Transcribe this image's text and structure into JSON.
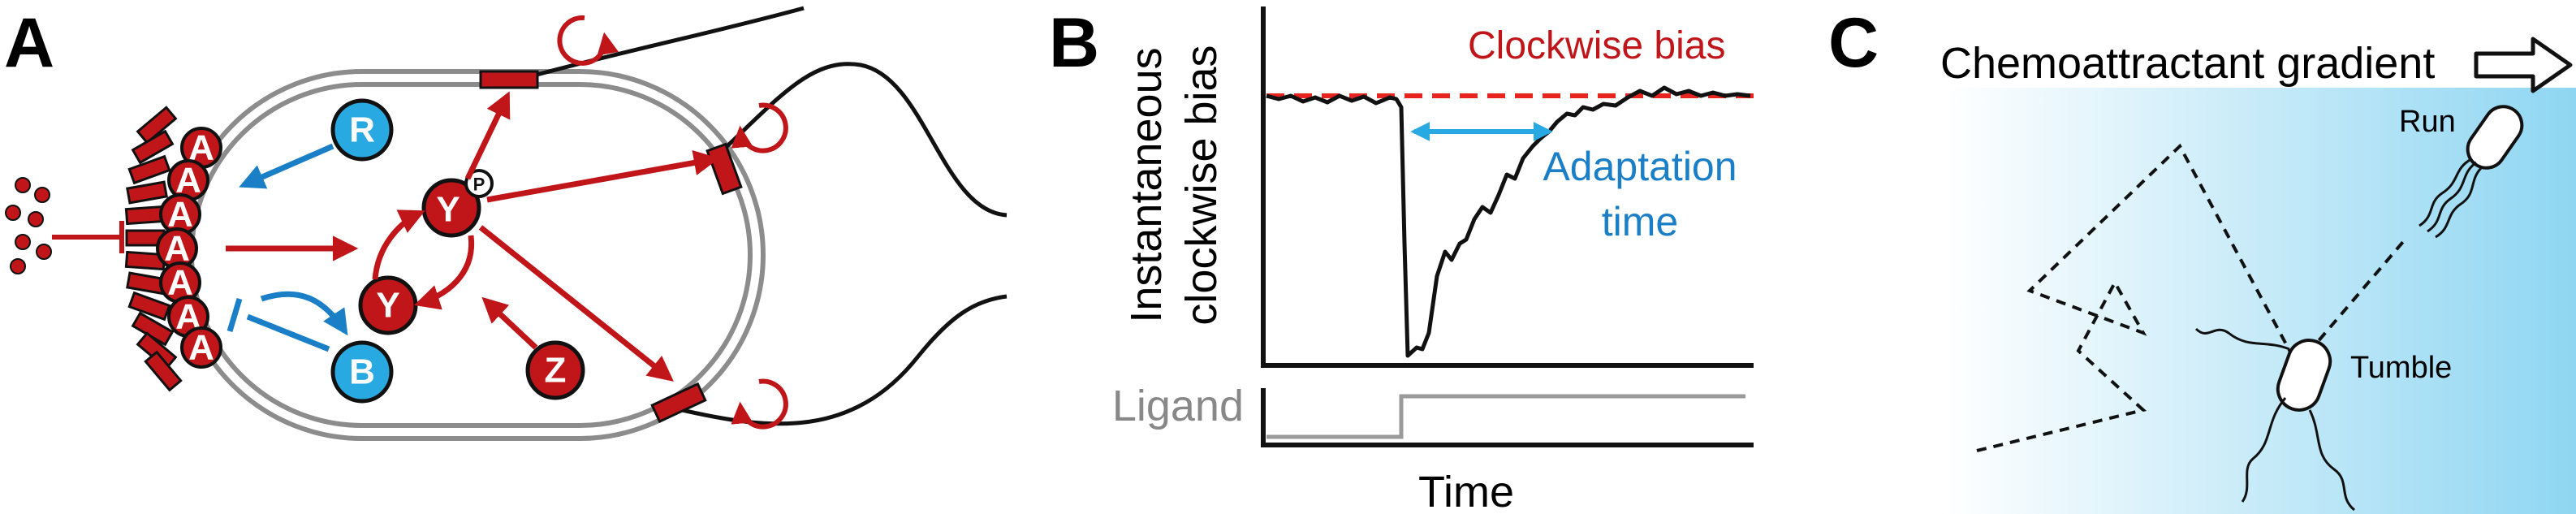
{
  "colors": {
    "red": "#c0161a",
    "blue_circle": "#29a9e1",
    "blue_arrow": "#1a7fc6",
    "membrane": "#8c8c8c",
    "gradient_light": "#ffffff",
    "gradient_dark": "#8fd6f2",
    "ligand_line": "#9a9a9a"
  },
  "panel_a": {
    "letter": "A",
    "proteins": {
      "receptor_kinase": "A",
      "methyltransferase": "R",
      "methylesterase": "B",
      "response_regulator": "Y",
      "phospho_regulator": "Y",
      "phosphate": "P",
      "phosphatase": "Z"
    }
  },
  "panel_b": {
    "letter": "B",
    "ylabel_line1": "Instantaneous",
    "ylabel_line2": "clockwise bias",
    "reference_label": "Clockwise bias",
    "annotation_line1": "Adaptation",
    "annotation_line2": "time",
    "ligand_label": "Ligand",
    "xlabel": "Time"
  },
  "panel_c": {
    "letter": "C",
    "gradient_label": "Chemoattractant gradient",
    "run_label": "Run",
    "tumble_label": "Tumble"
  }
}
